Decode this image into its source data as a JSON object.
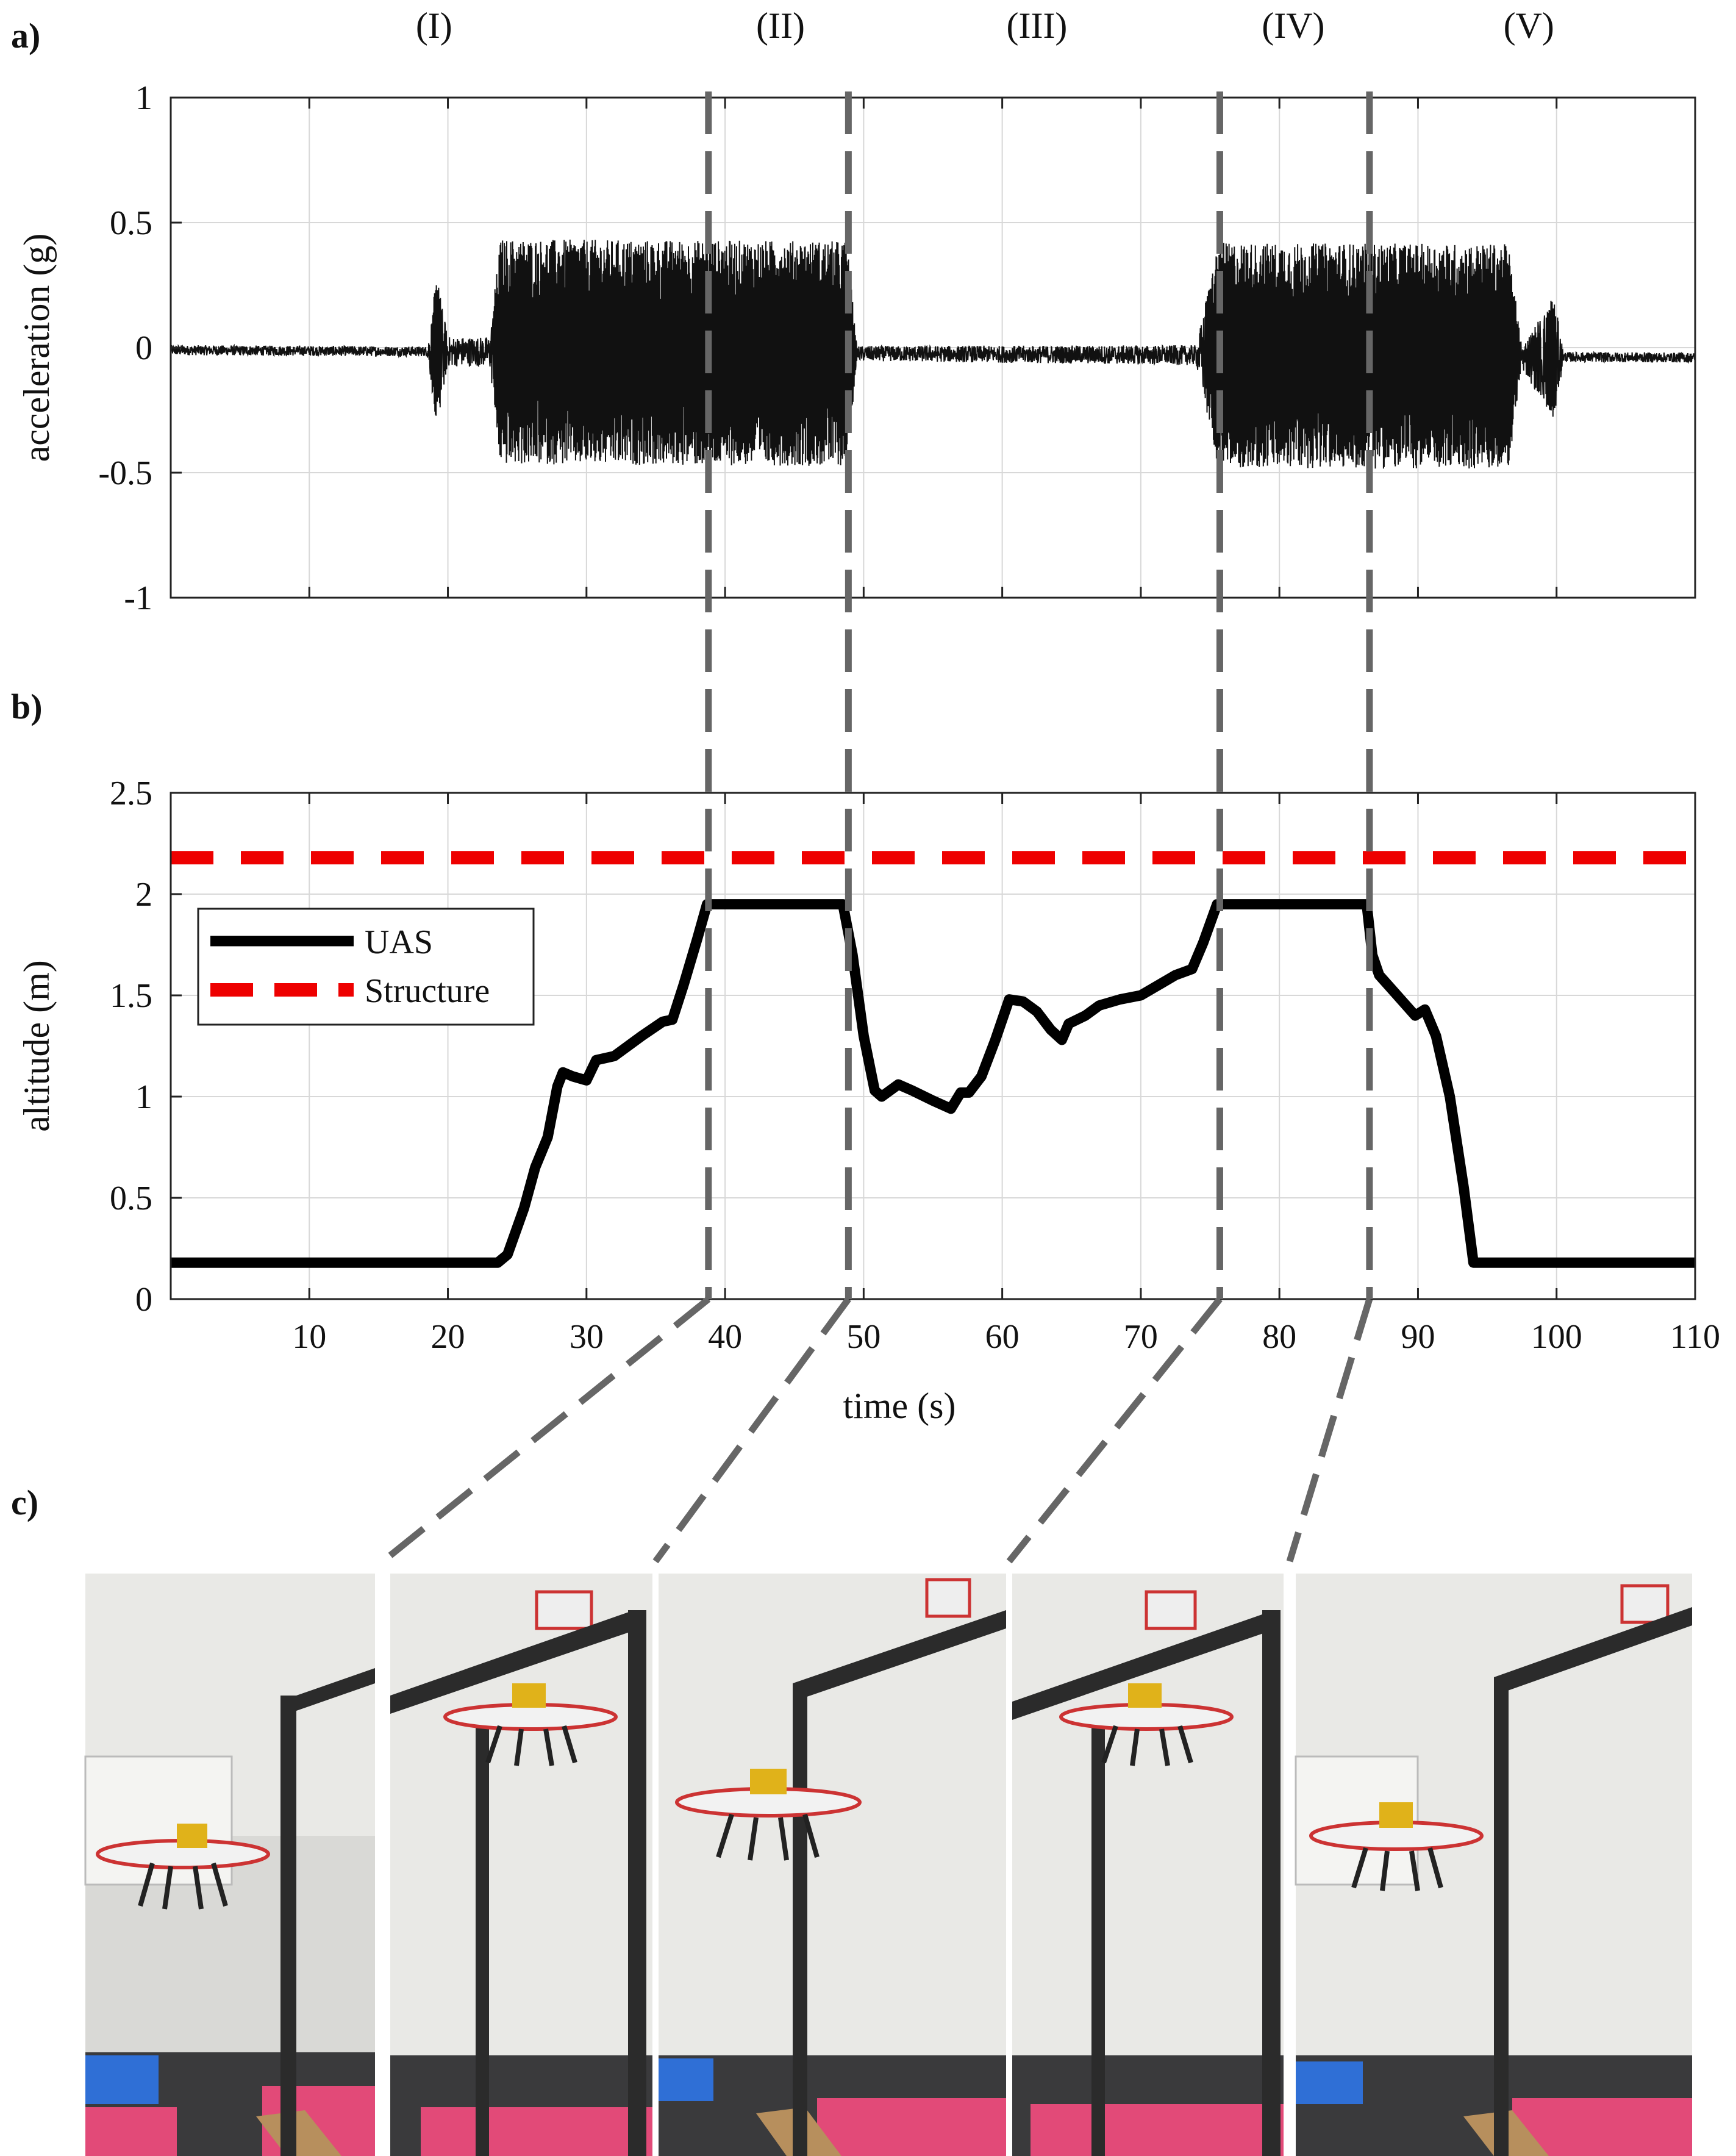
{
  "panel_labels": [
    "a)",
    "b)",
    "c)"
  ],
  "phases": [
    "(I)",
    "(II)",
    "(III)",
    "(IV)",
    "(V)"
  ],
  "phase_times": [
    19,
    44,
    62.5,
    81,
    98
  ],
  "boundaries": [
    38.8,
    48.9,
    75.7,
    86.5
  ],
  "chart_data": [
    {
      "type": "line",
      "panel": "a)",
      "title": "",
      "xlabel": "",
      "ylabel": "acceleration (g)",
      "xlim": [
        0,
        110
      ],
      "ylim": [
        -1,
        1
      ],
      "xticks": [
        10,
        20,
        30,
        40,
        50,
        60,
        70,
        80,
        90,
        100,
        110
      ],
      "yticks": [
        1,
        0.5,
        0,
        -0.5,
        -1
      ],
      "ytick_labels": [
        "1",
        "0.5",
        "0",
        "-0.5",
        "-1"
      ],
      "grid": true,
      "series": [
        {
          "name": "",
          "color": "#111111",
          "envelope": [
            {
              "t": 0,
              "amp": 0.02
            },
            {
              "t": 18.5,
              "amp": 0.02
            },
            {
              "t": 19.2,
              "amp": 0.3
            },
            {
              "t": 20,
              "amp": 0.06
            },
            {
              "t": 23,
              "amp": 0.06
            },
            {
              "t": 23.8,
              "amp": 0.45
            },
            {
              "t": 48.8,
              "amp": 0.45
            },
            {
              "t": 49.5,
              "amp": 0.03
            },
            {
              "t": 74,
              "amp": 0.04
            },
            {
              "t": 75.6,
              "amp": 0.45
            },
            {
              "t": 96.5,
              "amp": 0.45
            },
            {
              "t": 97.5,
              "amp": 0.05
            },
            {
              "t": 99.8,
              "amp": 0.25
            },
            {
              "t": 100.5,
              "amp": 0.02
            },
            {
              "t": 110,
              "amp": 0.02
            }
          ],
          "offset": [
            {
              "t": 0,
              "y": -0.01
            },
            {
              "t": 110,
              "y": -0.04
            }
          ]
        }
      ]
    },
    {
      "type": "line",
      "panel": "b)",
      "title": "",
      "xlabel": "time (s)",
      "ylabel": "altitude (m)",
      "xlim": [
        0,
        110
      ],
      "ylim": [
        0,
        2.5
      ],
      "xticks": [
        10,
        20,
        30,
        40,
        50,
        60,
        70,
        80,
        90,
        100,
        110
      ],
      "yticks": [
        2.5,
        2,
        1.5,
        1,
        0.5,
        0
      ],
      "ytick_labels": [
        "2.5",
        "2",
        "1.5",
        "1",
        "0.5",
        "0"
      ],
      "grid": true,
      "legend": "upper-left",
      "series": [
        {
          "name": "UAS",
          "color": "#000000",
          "style": "solid",
          "points": [
            [
              0,
              0.18
            ],
            [
              23.6,
              0.18
            ],
            [
              24.3,
              0.22
            ],
            [
              25.5,
              0.45
            ],
            [
              26.3,
              0.65
            ],
            [
              27.2,
              0.8
            ],
            [
              27.9,
              1.05
            ],
            [
              28.3,
              1.12
            ],
            [
              29,
              1.1
            ],
            [
              30,
              1.08
            ],
            [
              30.7,
              1.18
            ],
            [
              32,
              1.2
            ],
            [
              33,
              1.25
            ],
            [
              34,
              1.3
            ],
            [
              35.5,
              1.37
            ],
            [
              36.2,
              1.38
            ],
            [
              37,
              1.55
            ],
            [
              38,
              1.78
            ],
            [
              38.7,
              1.95
            ],
            [
              48.5,
              1.95
            ],
            [
              49.2,
              1.7
            ],
            [
              50,
              1.3
            ],
            [
              50.8,
              1.03
            ],
            [
              51.3,
              1
            ],
            [
              52.5,
              1.06
            ],
            [
              53.5,
              1.03
            ],
            [
              55,
              0.98
            ],
            [
              56.3,
              0.94
            ],
            [
              57,
              1.02
            ],
            [
              57.6,
              1.02
            ],
            [
              58.5,
              1.1
            ],
            [
              59.5,
              1.28
            ],
            [
              60.5,
              1.48
            ],
            [
              61.5,
              1.47
            ],
            [
              62.5,
              1.42
            ],
            [
              63.5,
              1.33
            ],
            [
              64.3,
              1.28
            ],
            [
              64.8,
              1.36
            ],
            [
              66,
              1.4
            ],
            [
              67,
              1.45
            ],
            [
              68.5,
              1.48
            ],
            [
              70,
              1.5
            ],
            [
              71.5,
              1.56
            ],
            [
              72.5,
              1.6
            ],
            [
              73.7,
              1.63
            ],
            [
              74.5,
              1.76
            ],
            [
              75.5,
              1.95
            ],
            [
              86.3,
              1.95
            ],
            [
              86.7,
              1.7
            ],
            [
              87.2,
              1.6
            ],
            [
              88.5,
              1.5
            ],
            [
              89.8,
              1.4
            ],
            [
              90.5,
              1.43
            ],
            [
              91.3,
              1.3
            ],
            [
              92.3,
              1
            ],
            [
              93.3,
              0.55
            ],
            [
              94,
              0.18
            ],
            [
              110,
              0.18
            ]
          ]
        },
        {
          "name": "Structure",
          "color": "#ee0000",
          "style": "dashed",
          "points": [
            [
              0,
              2.18
            ],
            [
              110,
              2.18
            ]
          ]
        }
      ]
    }
  ]
}
